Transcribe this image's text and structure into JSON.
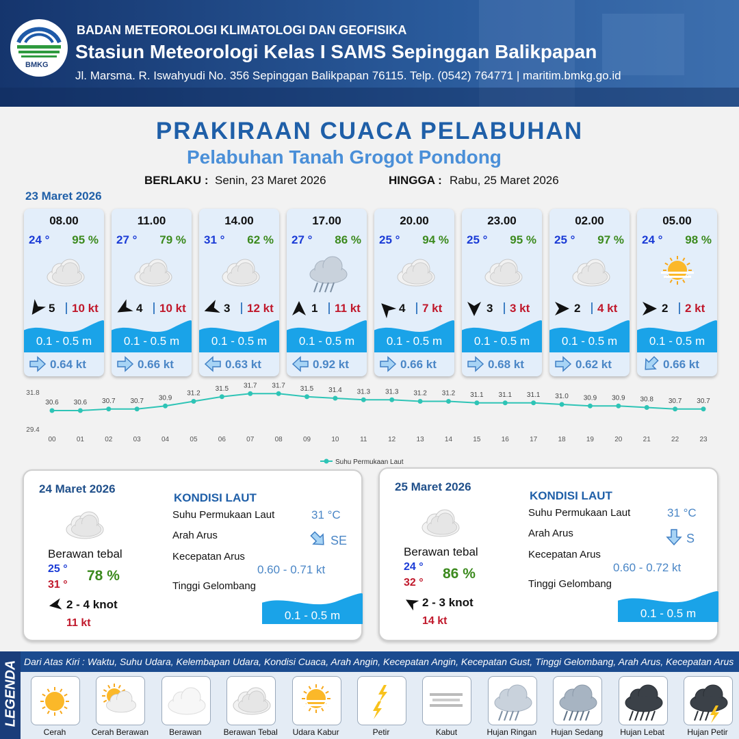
{
  "header": {
    "logo": "BMKG",
    "agency": "BADAN METEOROLOGI KLIMATOLOGI DAN GEOFISIKA",
    "station": "Stasiun Meteorologi Kelas I SAMS Sepinggan Balikpapan",
    "address": "Jl. Marsma. R. Iswahyudi No. 356 Sepinggan Balikpapan 76115. Telp. (0542) 764771 | maritim.bmkg.go.id"
  },
  "title": "PRAKIRAAN CUACA PELABUHAN",
  "subtitle": "Pelabuhan Tanah Grogot Pondong",
  "validity": {
    "from_label": "BERLAKU :",
    "from": "Senin, 23 Maret 2026",
    "to_label": "HINGGA :",
    "to": "Rabu, 25 Maret 2026"
  },
  "day1": {
    "date": "23 Maret 2026",
    "forecasts": [
      {
        "time": "08.00",
        "temp": "24 °",
        "humidity": "95 %",
        "weather": "Berawan Tebal",
        "wind_arrow": 215,
        "wind": "5",
        "gust": "10 kt",
        "wave": "0.1 - 0.5 m",
        "current_arrow": 90,
        "current": "0.64 kt"
      },
      {
        "time": "11.00",
        "temp": "27 °",
        "humidity": "79 %",
        "weather": "Berawan Tebal",
        "wind_arrow": 240,
        "wind": "4",
        "gust": "10 kt",
        "wave": "0.1 - 0.5 m",
        "current_arrow": 90,
        "current": "0.66 kt"
      },
      {
        "time": "14.00",
        "temp": "31 °",
        "humidity": "62 %",
        "weather": "Berawan Tebal",
        "wind_arrow": 250,
        "wind": "3",
        "gust": "12 kt",
        "wave": "0.1 - 0.5 m",
        "current_arrow": 270,
        "current": "0.63 kt"
      },
      {
        "time": "17.00",
        "temp": "27 °",
        "humidity": "86 %",
        "weather": "Hujan Ringan",
        "wind_arrow": 0,
        "wind": "1",
        "gust": "11 kt",
        "wave": "0.1 - 0.5 m",
        "current_arrow": 270,
        "current": "0.92 kt"
      },
      {
        "time": "20.00",
        "temp": "25 °",
        "humidity": "94 %",
        "weather": "Berawan Tebal",
        "wind_arrow": 315,
        "wind": "4",
        "gust": "7 kt",
        "wave": "0.1 - 0.5 m",
        "current_arrow": 90,
        "current": "0.66 kt"
      },
      {
        "time": "23.00",
        "temp": "25 °",
        "humidity": "95 %",
        "weather": "Berawan Tebal",
        "wind_arrow": 180,
        "wind": "3",
        "gust": "3 kt",
        "wave": "0.1 - 0.5 m",
        "current_arrow": 90,
        "current": "0.68 kt"
      },
      {
        "time": "02.00",
        "temp": "25 °",
        "humidity": "97 %",
        "weather": "Berawan Tebal",
        "wind_arrow": 90,
        "wind": "2",
        "gust": "4 kt",
        "wave": "0.1 - 0.5 m",
        "current_arrow": 90,
        "current": "0.62 kt"
      },
      {
        "time": "05.00",
        "temp": "24 °",
        "humidity": "98 %",
        "weather": "Udara Kabur",
        "wind_arrow": 90,
        "wind": "2",
        "gust": "2 kt",
        "wave": "0.1 - 0.5 m",
        "current_arrow": 225,
        "current": "0.66 kt"
      }
    ]
  },
  "chart_data": {
    "type": "line",
    "categories": [
      "00",
      "01",
      "02",
      "03",
      "04",
      "05",
      "06",
      "07",
      "08",
      "09",
      "10",
      "11",
      "12",
      "13",
      "14",
      "15",
      "16",
      "17",
      "18",
      "19",
      "20",
      "21",
      "22",
      "23"
    ],
    "series": [
      {
        "name": "Suhu Permukaan Laut",
        "color": "#2ec4b6",
        "values": [
          30.6,
          30.6,
          30.7,
          30.7,
          30.9,
          31.2,
          31.5,
          31.7,
          31.7,
          31.5,
          31.4,
          31.3,
          31.3,
          31.2,
          31.2,
          31.1,
          31.1,
          31.1,
          31.0,
          30.9,
          30.9,
          30.8,
          30.7,
          30.7
        ],
        "value_labels": [
          "30.6",
          "30.6",
          "30.7",
          "30.7",
          "30.9",
          "31.2",
          "31.5",
          "31.7",
          "31.7",
          "31.5",
          "31.4",
          "31.3",
          "31.3",
          "31.2",
          "31.2",
          "31.1",
          "31.1",
          "31.1",
          "31.0",
          "30.9",
          "30.9",
          "30.8",
          "30.7",
          "30.7"
        ]
      }
    ],
    "ylim": [
      29.4,
      31.8
    ],
    "yticks": [
      29.4,
      31.8
    ],
    "grid": false,
    "legend": "bottom"
  },
  "days": [
    {
      "date": "24 Maret 2026",
      "weather": "Berawan tebal",
      "temp_min": "25 °",
      "temp_max": "31 °",
      "humidity": "78 %",
      "wind_arrow": 260,
      "wind": "2  - 4 knot",
      "gust": "11 kt",
      "sea": {
        "title": "KONDISI LAUT",
        "sst_label": "Suhu Permukaan Laut",
        "sst": "31 °C",
        "direction_label": "Arah Arus",
        "current_arrow": 135,
        "direction": "SE",
        "speed_label": "Kecepatan Arus",
        "speed": "0.60  - 0.71 kt",
        "wave_label": "Tinggi Gelombang",
        "wave": "0.1 - 0.5 m"
      }
    },
    {
      "date": "25 Maret 2026",
      "weather": "Berawan tebal",
      "temp_min": "24 °",
      "temp_max": "32 °",
      "humidity": "86 %",
      "wind_arrow": 300,
      "wind": "2  - 3 knot",
      "gust": "14 kt",
      "sea": {
        "title": "KONDISI LAUT",
        "sst_label": "Suhu Permukaan Laut",
        "sst": "31 °C",
        "direction_label": "Arah Arus",
        "current_arrow": 180,
        "direction": "S",
        "speed_label": "Kecepatan Arus",
        "speed": "0.60  - 0.72 kt",
        "wave_label": "Tinggi Gelombang",
        "wave": "0.1 - 0.5 m"
      }
    }
  ],
  "legend": {
    "title": "LEGENDA",
    "description": "Dari Atas Kiri : Waktu, Suhu Udara, Kelembapan Udara, Kondisi Cuaca, Arah Angin, Kecepatan Angin, Kecepatan Gust, Tinggi Gelombang, Arah Arus, Kecepatan Arus",
    "items": [
      "Cerah",
      "Cerah Berawan",
      "Berawan",
      "Berawan Tebal",
      "Udara Kabur",
      "Petir",
      "Kabut",
      "Hujan Ringan",
      "Hujan Sedang",
      "Hujan Lebat",
      "Hujan Petir"
    ]
  }
}
